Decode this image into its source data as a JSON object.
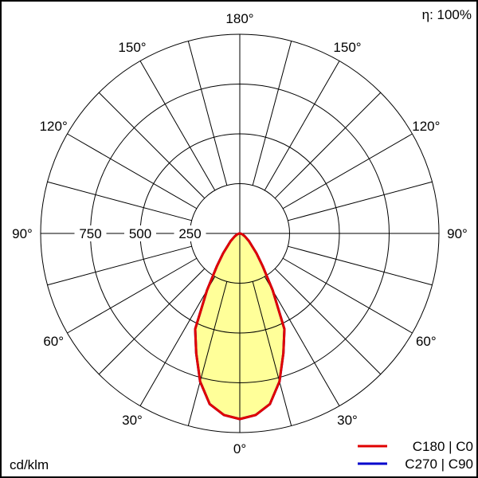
{
  "chart_data": {
    "type": "polar",
    "efficiency": "η: 100%",
    "unit": "cd/klm",
    "radial_ticks": [
      250,
      500,
      750,
      1000
    ],
    "radial_tick_labels": [
      "250",
      "500",
      "750"
    ],
    "rmax": 1000,
    "angle_labels": [
      {
        "angle": 180,
        "text": "180°"
      },
      {
        "angle": 150,
        "text": "150°"
      },
      {
        "angle": 120,
        "text": "120°"
      },
      {
        "angle": 90,
        "text": "90°"
      },
      {
        "angle": 60,
        "text": "60°"
      },
      {
        "angle": 30,
        "text": "30°"
      },
      {
        "angle": 0,
        "text": "0°"
      }
    ],
    "spoke_step_deg": 15,
    "grid": true,
    "legend_position": "bottom-right",
    "series": [
      {
        "name": "C180 | C0",
        "color": "#e00000",
        "fill": "#ffff99",
        "angles": [
          0,
          5,
          10,
          15,
          20,
          25,
          30,
          35,
          40,
          50,
          60,
          70,
          80,
          90
        ],
        "values": [
          932,
          915,
          870,
          770,
          640,
          530,
          330,
          200,
          130,
          60,
          30,
          15,
          5,
          0
        ]
      },
      {
        "name": "C270 | C90",
        "color": "#0000cc",
        "angles": [
          0,
          5,
          10,
          15,
          20,
          25,
          30,
          35,
          40,
          50,
          60,
          70,
          80,
          90
        ],
        "values": [
          932,
          915,
          870,
          770,
          640,
          530,
          330,
          200,
          130,
          60,
          30,
          15,
          5,
          0
        ]
      }
    ]
  }
}
